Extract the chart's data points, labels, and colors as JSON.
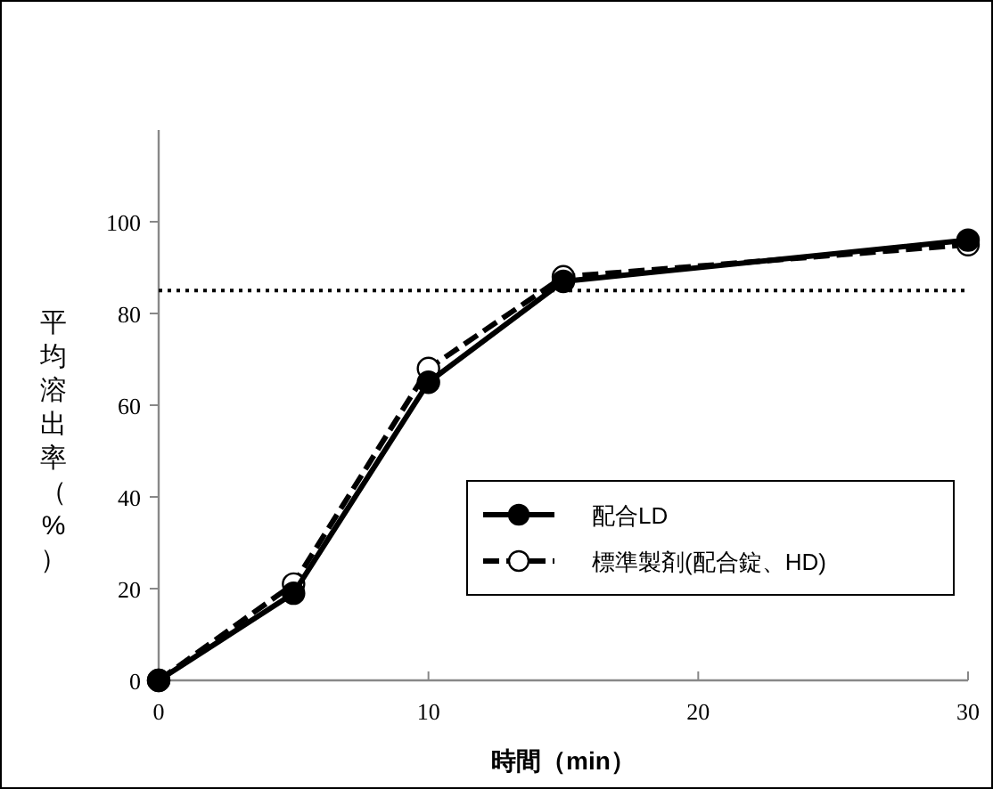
{
  "chart_data": {
    "type": "line",
    "xlabel": "時間（min）",
    "ylabel": "平均溶出率（%）",
    "x": [
      0,
      5,
      10,
      15,
      30
    ],
    "series": [
      {
        "name": "配合LD",
        "color": "#000000",
        "values": [
          0,
          19,
          65,
          87,
          96
        ],
        "line_style": "solid",
        "marker": "circle"
      },
      {
        "name": "標準製剤(配合錠、HD)",
        "color": "#000000",
        "values": [
          0,
          21,
          68,
          88,
          95
        ],
        "line_style": "dashed",
        "marker": "circle"
      }
    ],
    "xlim": [
      0,
      30
    ],
    "xticks": [
      0,
      10,
      20,
      30
    ],
    "ylim": [
      0,
      120
    ],
    "yticks": [
      0,
      20,
      40,
      60,
      80,
      100
    ],
    "ref_lines": [
      {
        "axis": "y",
        "value": 85,
        "line_style": "dotted",
        "color": "#000000"
      }
    ],
    "grid": false,
    "legend": "bottom right"
  }
}
